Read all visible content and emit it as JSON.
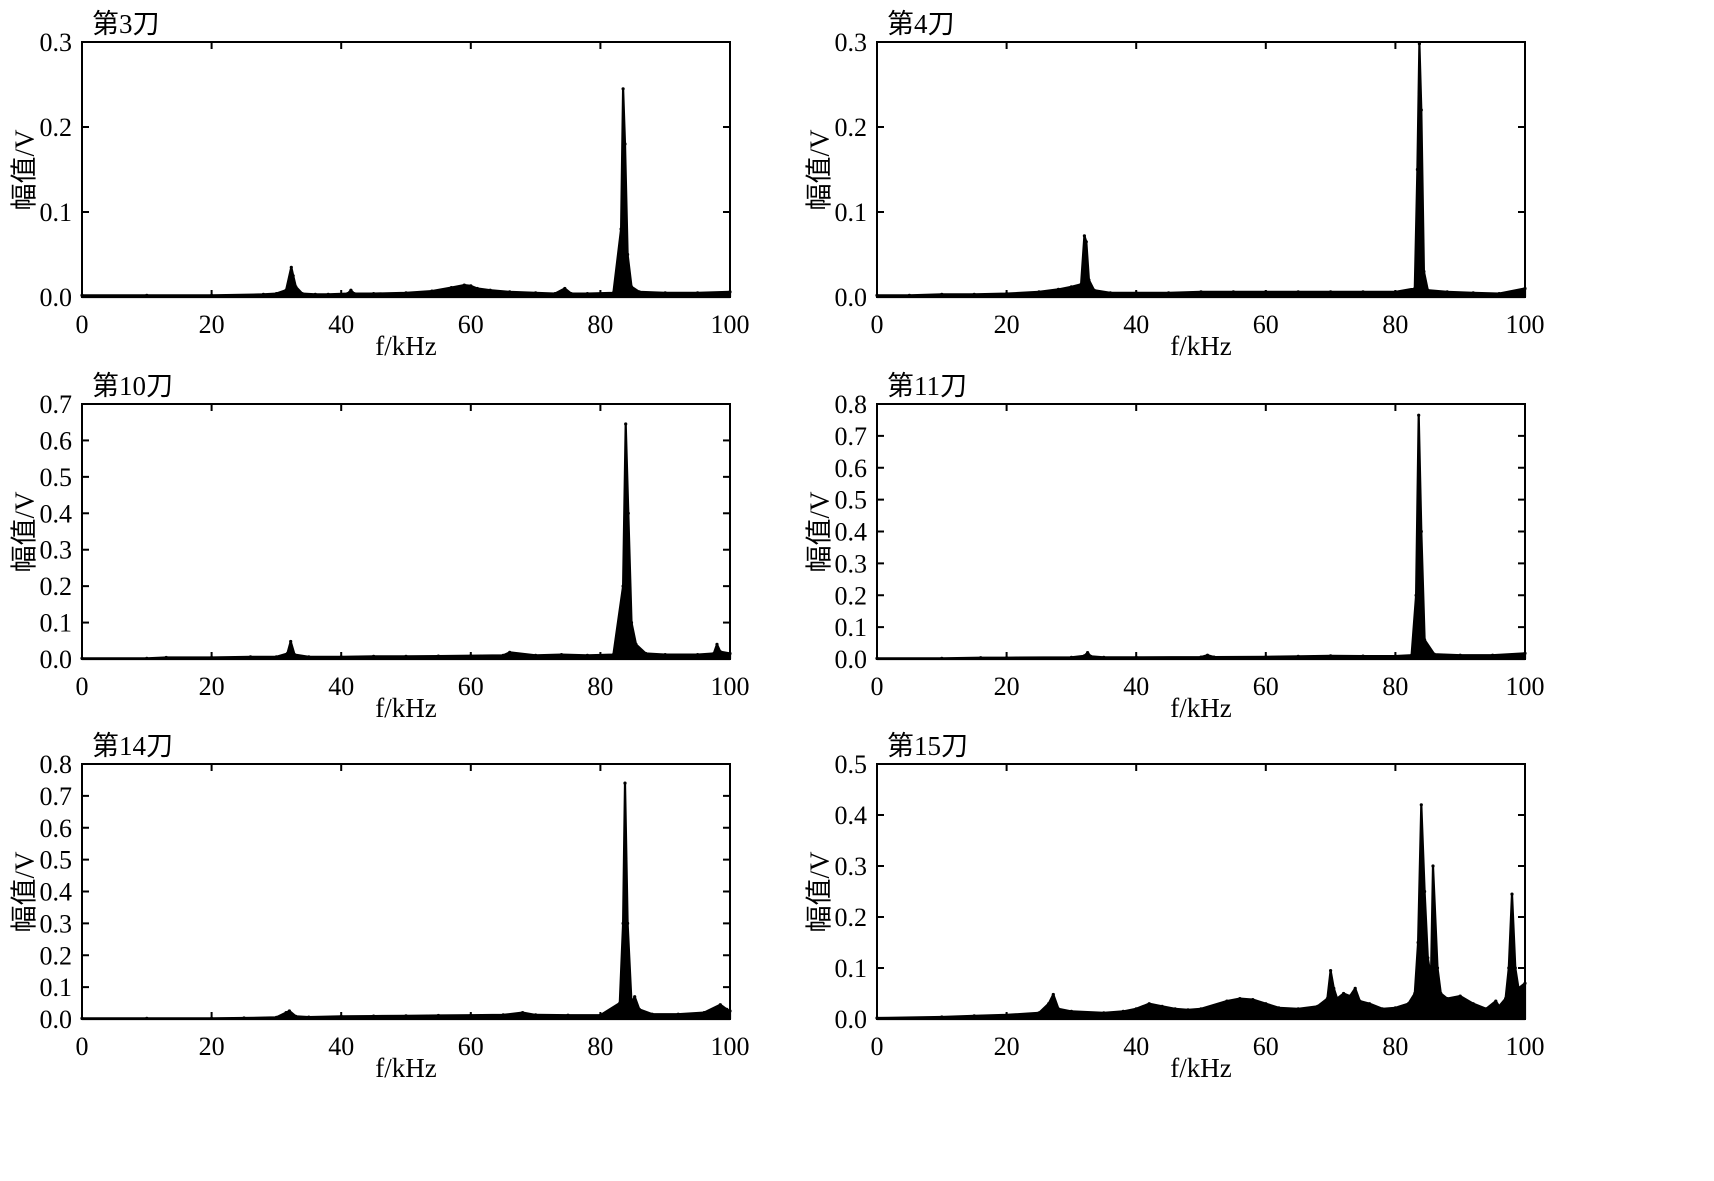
{
  "chart_data": [
    {
      "type": "line",
      "title": "第3刀",
      "xlabel": "f/kHz",
      "ylabel": "幅值/V",
      "xlim": [
        0,
        100
      ],
      "ylim": [
        0,
        0.3
      ],
      "xticks": [
        0,
        20,
        40,
        60,
        80,
        100
      ],
      "yticks": [
        0.0,
        0.1,
        0.2,
        0.3
      ],
      "grid": false,
      "series": [
        {
          "x": [
            0,
            10,
            20,
            28,
            30,
            31.5,
            32.3,
            32.6,
            33,
            34,
            36,
            38,
            41,
            41.5,
            42,
            45,
            50,
            54,
            57,
            59,
            60,
            61,
            63,
            66,
            70,
            73,
            74.5,
            75.5,
            78,
            82,
            83.2,
            83.5,
            83.8,
            84.2,
            84.8,
            86,
            90,
            95,
            100
          ],
          "y": [
            0.002,
            0.002,
            0.002,
            0.003,
            0.004,
            0.008,
            0.035,
            0.025,
            0.012,
            0.004,
            0.003,
            0.003,
            0.004,
            0.008,
            0.004,
            0.004,
            0.005,
            0.007,
            0.011,
            0.014,
            0.013,
            0.01,
            0.008,
            0.006,
            0.005,
            0.004,
            0.01,
            0.004,
            0.004,
            0.005,
            0.08,
            0.245,
            0.18,
            0.05,
            0.012,
            0.006,
            0.005,
            0.005,
            0.006
          ]
        }
      ]
    },
    {
      "type": "line",
      "title": "第4刀",
      "xlabel": "f/kHz",
      "ylabel": "幅值/V",
      "xlim": [
        0,
        100
      ],
      "ylim": [
        0,
        0.3
      ],
      "xticks": [
        0,
        20,
        40,
        60,
        80,
        100
      ],
      "yticks": [
        0.0,
        0.1,
        0.2,
        0.3
      ],
      "grid": false,
      "series": [
        {
          "x": [
            0,
            5,
            10,
            15,
            20,
            25,
            28,
            30,
            31.5,
            32,
            32.3,
            32.7,
            33.5,
            36,
            40,
            45,
            50,
            55,
            60,
            65,
            70,
            75,
            80,
            83,
            83.4,
            83.7,
            84,
            84.4,
            85,
            88,
            92,
            96,
            100
          ],
          "y": [
            0.002,
            0.002,
            0.003,
            0.003,
            0.004,
            0.006,
            0.009,
            0.012,
            0.015,
            0.072,
            0.065,
            0.02,
            0.008,
            0.005,
            0.005,
            0.005,
            0.006,
            0.006,
            0.006,
            0.006,
            0.006,
            0.006,
            0.006,
            0.01,
            0.15,
            0.298,
            0.22,
            0.03,
            0.008,
            0.006,
            0.005,
            0.004,
            0.01
          ]
        }
      ]
    },
    {
      "type": "line",
      "title": "第10刀",
      "xlabel": "f/kHz",
      "ylabel": "幅值/V",
      "xlim": [
        0,
        100
      ],
      "ylim": [
        0,
        0.7
      ],
      "xticks": [
        0,
        20,
        40,
        60,
        80,
        100
      ],
      "yticks": [
        0.0,
        0.1,
        0.2,
        0.3,
        0.4,
        0.5,
        0.6,
        0.7
      ],
      "grid": false,
      "series": [
        {
          "x": [
            0,
            10,
            13,
            20,
            26,
            30,
            31.7,
            32.2,
            32.8,
            35,
            40,
            45,
            50,
            55,
            60,
            65,
            66,
            70,
            74,
            78,
            82,
            83.5,
            83.9,
            84.3,
            84.8,
            85.5,
            87,
            90,
            95,
            97.5,
            98,
            98.5,
            100
          ],
          "y": [
            0.002,
            0.002,
            0.004,
            0.004,
            0.006,
            0.006,
            0.015,
            0.048,
            0.012,
            0.006,
            0.006,
            0.007,
            0.007,
            0.008,
            0.009,
            0.01,
            0.018,
            0.01,
            0.012,
            0.01,
            0.012,
            0.2,
            0.645,
            0.4,
            0.1,
            0.04,
            0.015,
            0.012,
            0.012,
            0.015,
            0.04,
            0.02,
            0.015
          ]
        }
      ]
    },
    {
      "type": "line",
      "title": "第11刀",
      "xlabel": "f/kHz",
      "ylabel": "幅值/V",
      "xlim": [
        0,
        100
      ],
      "ylim": [
        0,
        0.8
      ],
      "xticks": [
        0,
        20,
        40,
        60,
        80,
        100
      ],
      "yticks": [
        0.0,
        0.1,
        0.2,
        0.3,
        0.4,
        0.5,
        0.6,
        0.7,
        0.8
      ],
      "grid": false,
      "series": [
        {
          "x": [
            0,
            10,
            16,
            20,
            30,
            32,
            32.5,
            33,
            35,
            40,
            50,
            51,
            52,
            60,
            65,
            70,
            75,
            80,
            82.5,
            83.2,
            83.6,
            84,
            84.5,
            86,
            90,
            95,
            100
          ],
          "y": [
            0.002,
            0.002,
            0.004,
            0.004,
            0.005,
            0.01,
            0.02,
            0.008,
            0.005,
            0.005,
            0.006,
            0.012,
            0.006,
            0.007,
            0.008,
            0.01,
            0.009,
            0.009,
            0.012,
            0.2,
            0.765,
            0.4,
            0.06,
            0.015,
            0.012,
            0.012,
            0.018
          ]
        }
      ]
    },
    {
      "type": "line",
      "title": "第14刀",
      "xlabel": "f/kHz",
      "ylabel": "幅值/V",
      "xlim": [
        0,
        100
      ],
      "ylim": [
        0,
        0.8
      ],
      "xticks": [
        0,
        20,
        40,
        60,
        80,
        100
      ],
      "yticks": [
        0.0,
        0.1,
        0.2,
        0.3,
        0.4,
        0.5,
        0.6,
        0.7,
        0.8
      ],
      "grid": false,
      "series": [
        {
          "x": [
            0,
            10,
            20,
            25,
            30,
            31.5,
            32,
            33,
            35,
            40,
            45,
            50,
            55,
            60,
            65,
            68,
            70,
            75,
            80,
            83,
            83.5,
            83.8,
            84.2,
            84.8,
            85.3,
            86,
            88,
            92,
            96,
            98.5,
            99.5,
            100
          ],
          "y": [
            0.002,
            0.002,
            0.002,
            0.003,
            0.005,
            0.02,
            0.025,
            0.008,
            0.006,
            0.008,
            0.009,
            0.01,
            0.011,
            0.012,
            0.013,
            0.02,
            0.013,
            0.012,
            0.012,
            0.05,
            0.3,
            0.74,
            0.3,
            0.05,
            0.07,
            0.03,
            0.015,
            0.015,
            0.02,
            0.045,
            0.03,
            0.025
          ]
        }
      ]
    },
    {
      "type": "line",
      "title": "第15刀",
      "xlabel": "f/kHz",
      "ylabel": "幅值/V",
      "xlim": [
        0,
        100
      ],
      "ylim": [
        0,
        0.5
      ],
      "xticks": [
        0,
        20,
        40,
        60,
        80,
        100
      ],
      "yticks": [
        0.0,
        0.1,
        0.2,
        0.3,
        0.4,
        0.5
      ],
      "grid": false,
      "series": [
        {
          "x": [
            0,
            10,
            15,
            20,
            25,
            26.5,
            27.2,
            28,
            30,
            35,
            38,
            40,
            42,
            44,
            46,
            48,
            50,
            54,
            56,
            58,
            60,
            62,
            65,
            68,
            69.5,
            70,
            70.5,
            71,
            72,
            73,
            73.8,
            74.5,
            76,
            78,
            80,
            82,
            83,
            83.5,
            84,
            84.5,
            85,
            85.5,
            85.8,
            86.5,
            87,
            88,
            90,
            92,
            94,
            95.5,
            96,
            97,
            97.5,
            98,
            98.5,
            99,
            100
          ],
          "y": [
            0.002,
            0.004,
            0.006,
            0.008,
            0.012,
            0.03,
            0.048,
            0.02,
            0.015,
            0.012,
            0.015,
            0.02,
            0.03,
            0.025,
            0.02,
            0.018,
            0.02,
            0.035,
            0.04,
            0.038,
            0.03,
            0.022,
            0.02,
            0.025,
            0.04,
            0.095,
            0.06,
            0.04,
            0.05,
            0.045,
            0.06,
            0.035,
            0.03,
            0.02,
            0.022,
            0.03,
            0.05,
            0.15,
            0.42,
            0.25,
            0.12,
            0.08,
            0.3,
            0.1,
            0.05,
            0.04,
            0.045,
            0.03,
            0.02,
            0.035,
            0.025,
            0.04,
            0.1,
            0.245,
            0.1,
            0.06,
            0.07
          ]
        }
      ]
    }
  ]
}
